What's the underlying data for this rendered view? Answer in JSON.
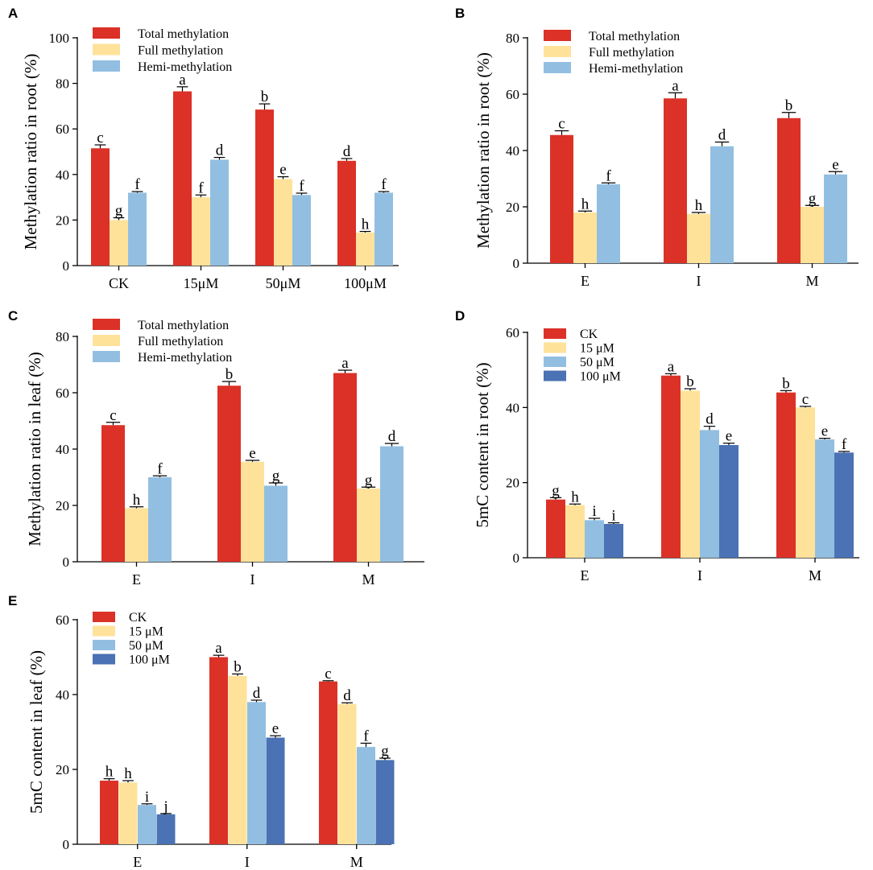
{
  "colors": {
    "total": "#dc3127",
    "full": "#ffe29a",
    "hemi": "#92bfe1",
    "ck": "#dc3127",
    "c15": "#ffe29a",
    "c50": "#92bfe1",
    "c100": "#4a72b4"
  },
  "chart_data": [
    {
      "id": "A",
      "panel_label": "A",
      "type": "bar",
      "ylabel": "Methylation ratio in root (%)",
      "xlabel": "",
      "ylim": [
        0,
        100
      ],
      "yticks": [
        0,
        20,
        40,
        60,
        80,
        100
      ],
      "categories": [
        "CK",
        "15μM",
        "50μM",
        "100μM"
      ],
      "legend_position": "top-left",
      "series": [
        {
          "name": "Total methylation",
          "color_key": "total",
          "values": [
            51.5,
            76.5,
            68.5,
            46.0
          ],
          "errors": [
            1.5,
            2.0,
            2.5,
            1.0
          ],
          "labels": [
            "c",
            "a",
            "b",
            "d"
          ]
        },
        {
          "name": "Full methylation",
          "color_key": "full",
          "values": [
            20.0,
            30.0,
            38.0,
            14.5
          ],
          "errors": [
            1.0,
            1.0,
            1.0,
            0.5
          ],
          "labels": [
            "g",
            "f",
            "e",
            "h"
          ]
        },
        {
          "name": "Hemi-methylation",
          "color_key": "hemi",
          "values": [
            32.0,
            46.5,
            31.0,
            32.0
          ],
          "errors": [
            0.5,
            1.0,
            0.8,
            0.5
          ],
          "labels": [
            "f",
            "d",
            "f",
            "f"
          ]
        }
      ]
    },
    {
      "id": "B",
      "panel_label": "B",
      "type": "bar",
      "ylabel": "Methylation ratio in root (%)",
      "xlabel": "",
      "ylim": [
        0,
        80
      ],
      "yticks": [
        0,
        20,
        40,
        60,
        80
      ],
      "categories": [
        "E",
        "I",
        "M"
      ],
      "legend_position": "top-left",
      "series": [
        {
          "name": "Total methylation",
          "color_key": "total",
          "values": [
            45.5,
            58.5,
            51.5
          ],
          "errors": [
            1.5,
            2.0,
            2.0
          ],
          "labels": [
            "c",
            "a",
            "b"
          ]
        },
        {
          "name": "Full methylation",
          "color_key": "full",
          "values": [
            18.0,
            17.5,
            20.0
          ],
          "errors": [
            0.5,
            0.5,
            0.5
          ],
          "labels": [
            "h",
            "h",
            "g"
          ]
        },
        {
          "name": "Hemi-methylation",
          "color_key": "hemi",
          "values": [
            28.0,
            41.5,
            31.5
          ],
          "errors": [
            0.5,
            1.5,
            1.0
          ],
          "labels": [
            "f",
            "d",
            "e"
          ]
        }
      ]
    },
    {
      "id": "C",
      "panel_label": "C",
      "type": "bar",
      "ylabel": "Methylation ratio in leaf (%)",
      "xlabel": "",
      "ylim": [
        0,
        80
      ],
      "yticks": [
        0,
        20,
        40,
        60,
        80
      ],
      "categories": [
        "E",
        "I",
        "M"
      ],
      "legend_position": "top-left",
      "series": [
        {
          "name": "Total methylation",
          "color_key": "total",
          "values": [
            48.5,
            62.5,
            67.0
          ],
          "errors": [
            1.0,
            1.5,
            1.0
          ],
          "labels": [
            "c",
            "b",
            "a"
          ]
        },
        {
          "name": "Full methylation",
          "color_key": "full",
          "values": [
            19.0,
            35.5,
            26.0
          ],
          "errors": [
            0.5,
            0.5,
            0.5
          ],
          "labels": [
            "h",
            "e",
            "g"
          ]
        },
        {
          "name": "Hemi-methylation",
          "color_key": "hemi",
          "values": [
            30.0,
            27.0,
            41.0
          ],
          "errors": [
            0.5,
            1.0,
            1.0
          ],
          "labels": [
            "f",
            "g",
            "d"
          ]
        }
      ]
    },
    {
      "id": "D",
      "panel_label": "D",
      "type": "bar",
      "ylabel": "5mC content in root (%)",
      "xlabel": "",
      "ylim": [
        0,
        60
      ],
      "yticks": [
        0,
        20,
        40,
        60
      ],
      "categories": [
        "E",
        "I",
        "M"
      ],
      "legend_position": "top-left",
      "series": [
        {
          "name": "CK",
          "color_key": "ck",
          "values": [
            15.5,
            48.5,
            44.0
          ],
          "errors": [
            0.5,
            0.5,
            0.5
          ],
          "labels": [
            "g",
            "a",
            "b"
          ]
        },
        {
          "name": "15 μM",
          "color_key": "c15",
          "values": [
            14.0,
            44.5,
            40.0
          ],
          "errors": [
            0.3,
            0.5,
            0.3
          ],
          "labels": [
            "h",
            "b",
            "c"
          ]
        },
        {
          "name": "50 μM",
          "color_key": "c50",
          "values": [
            10.0,
            34.0,
            31.5
          ],
          "errors": [
            0.5,
            1.0,
            0.3
          ],
          "labels": [
            "i",
            "d",
            "e"
          ]
        },
        {
          "name": "100 μM",
          "color_key": "c100",
          "values": [
            9.0,
            30.0,
            28.0
          ],
          "errors": [
            0.3,
            0.5,
            0.3
          ],
          "labels": [
            "i",
            "e",
            "f"
          ]
        }
      ]
    },
    {
      "id": "E",
      "panel_label": "E",
      "type": "bar",
      "ylabel": "5mC content in leaf (%)",
      "xlabel": "",
      "ylim": [
        0,
        60
      ],
      "yticks": [
        0,
        20,
        40,
        60
      ],
      "categories": [
        "E",
        "I",
        "M"
      ],
      "legend_position": "top-left",
      "series": [
        {
          "name": "CK",
          "color_key": "ck",
          "values": [
            17.0,
            50.0,
            43.5
          ],
          "errors": [
            0.5,
            0.5,
            0.2
          ],
          "labels": [
            "h",
            "a",
            "c"
          ]
        },
        {
          "name": "15 μM",
          "color_key": "c15",
          "values": [
            16.5,
            45.0,
            37.5
          ],
          "errors": [
            0.5,
            0.5,
            0.3
          ],
          "labels": [
            "h",
            "b",
            "d"
          ]
        },
        {
          "name": "50 μM",
          "color_key": "c50",
          "values": [
            10.5,
            38.0,
            26.0
          ],
          "errors": [
            0.3,
            0.5,
            1.0
          ],
          "labels": [
            "i",
            "d",
            "f"
          ]
        },
        {
          "name": "100 μM",
          "color_key": "c100",
          "values": [
            8.0,
            28.5,
            22.5
          ],
          "errors": [
            0.2,
            0.5,
            0.5
          ],
          "labels": [
            "j",
            "e",
            "g"
          ]
        }
      ]
    }
  ]
}
